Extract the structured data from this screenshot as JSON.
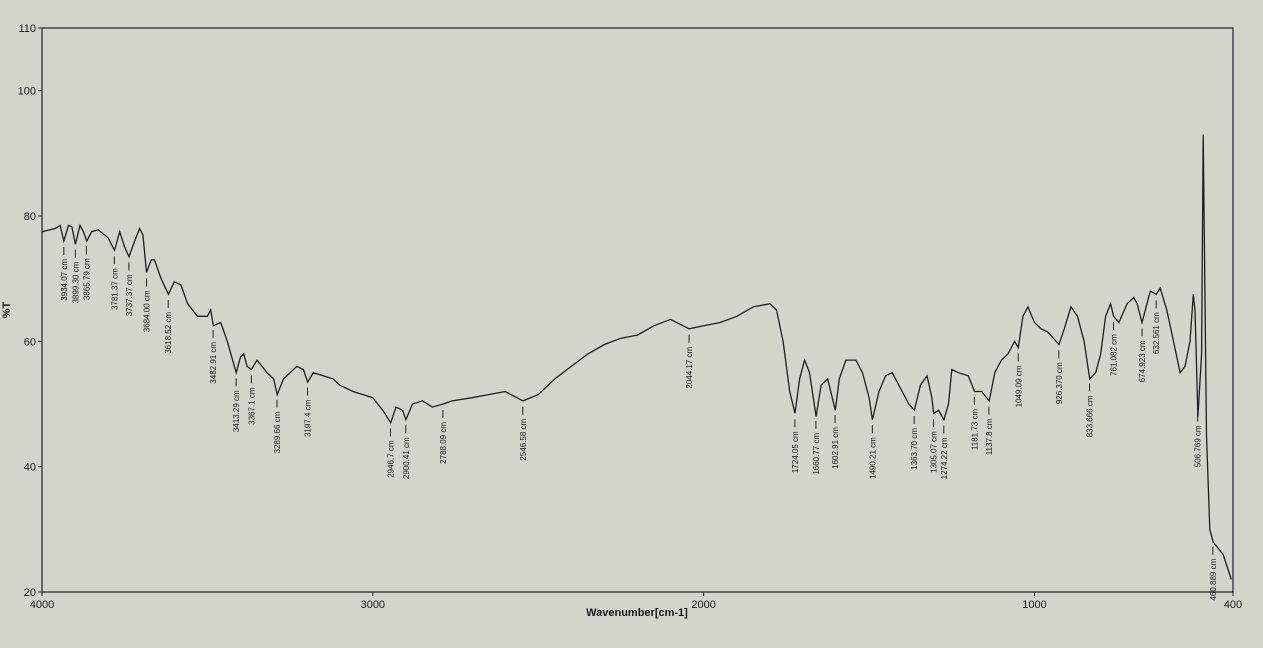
{
  "chart_data": {
    "type": "line",
    "x_label": "Wavenumber[cm-1]",
    "y_label": "%T",
    "color": "#1e1e1e",
    "xlim": [
      4000,
      400
    ],
    "ylim": [
      20,
      110
    ],
    "xticks": [
      4000,
      3000,
      2000,
      1000,
      400
    ],
    "yticks": [
      20,
      40,
      60,
      80,
      100,
      110
    ],
    "x": [
      4000,
      3960,
      3945,
      3934,
      3920,
      3910,
      3899,
      3885,
      3875,
      3865,
      3850,
      3830,
      3800,
      3781,
      3765,
      3750,
      3737,
      3720,
      3705,
      3695,
      3684,
      3670,
      3660,
      3640,
      3618,
      3600,
      3580,
      3560,
      3530,
      3500,
      3490,
      3482,
      3460,
      3440,
      3413,
      3400,
      3390,
      3380,
      3367,
      3350,
      3320,
      3300,
      3289,
      3270,
      3250,
      3230,
      3210,
      3197,
      3180,
      3150,
      3120,
      3100,
      3060,
      3000,
      2970,
      2946,
      2930,
      2910,
      2900,
      2880,
      2850,
      2820,
      2788,
      2760,
      2700,
      2650,
      2600,
      2546,
      2500,
      2450,
      2400,
      2350,
      2300,
      2250,
      2200,
      2150,
      2100,
      2044,
      2000,
      1950,
      1900,
      1850,
      1800,
      1780,
      1760,
      1740,
      1724,
      1710,
      1695,
      1680,
      1660,
      1645,
      1625,
      1602,
      1590,
      1570,
      1540,
      1520,
      1500,
      1490,
      1470,
      1450,
      1430,
      1400,
      1380,
      1363,
      1345,
      1325,
      1310,
      1305,
      1290,
      1274,
      1260,
      1250,
      1230,
      1200,
      1181,
      1160,
      1137,
      1120,
      1100,
      1080,
      1060,
      1049,
      1035,
      1020,
      1000,
      980,
      960,
      926,
      910,
      890,
      870,
      850,
      833,
      815,
      800,
      785,
      770,
      761,
      745,
      720,
      700,
      690,
      675,
      660,
      650,
      632,
      620,
      600,
      580,
      560,
      545,
      530,
      520,
      515,
      506,
      495,
      490,
      480,
      470,
      460,
      430,
      405
    ],
    "values": [
      77.5,
      78,
      78.5,
      76,
      78.5,
      78.3,
      75.5,
      78.5,
      77.5,
      76,
      77.5,
      77.8,
      76.5,
      74.5,
      77.5,
      75,
      73.5,
      76,
      78,
      77,
      71,
      73,
      73,
      70,
      67.5,
      69.5,
      69,
      66,
      64,
      64,
      65,
      62.5,
      63,
      60,
      55,
      57.5,
      58,
      56,
      55.5,
      57,
      55,
      54,
      51.5,
      54,
      55,
      56,
      55.5,
      53.5,
      55,
      54.5,
      54,
      53,
      52,
      51,
      49,
      47,
      49.5,
      49,
      47.5,
      50,
      50.5,
      49.5,
      50,
      50.5,
      51,
      51.5,
      52,
      50.5,
      51.5,
      54,
      56,
      58,
      59.5,
      60.5,
      61,
      62.5,
      63.5,
      62,
      62.5,
      63,
      64,
      65.5,
      66,
      65,
      60,
      52,
      48.5,
      54,
      57,
      55,
      48,
      53,
      54,
      49,
      54,
      57,
      57,
      55,
      51,
      47.5,
      52,
      54.5,
      55,
      52,
      50,
      49,
      53,
      54.5,
      51,
      48.5,
      49,
      47.5,
      50,
      55.5,
      55,
      54.5,
      52,
      52,
      50.5,
      55,
      57,
      58,
      60,
      59,
      64,
      65.5,
      63,
      62,
      61.5,
      59.5,
      62,
      65.5,
      64,
      60,
      54,
      55,
      58,
      64,
      66,
      64,
      63,
      66,
      67,
      66,
      63,
      66,
      68,
      67.5,
      68.5,
      65,
      60,
      55,
      56,
      60,
      67.5,
      65,
      48,
      58,
      93,
      45,
      30,
      28,
      26,
      22
    ],
    "peaks": [
      {
        "x": 3934.07,
        "label": "3934.07 cm"
      },
      {
        "x": 3899.3,
        "label": "3899.30 cm"
      },
      {
        "x": 3865.79,
        "label": "3865.79 cm"
      },
      {
        "x": 3781.37,
        "label": "3781.37 cm"
      },
      {
        "x": 3737.37,
        "label": "3737.37 cm"
      },
      {
        "x": 3684,
        "label": "3684.00 cm"
      },
      {
        "x": 3618.52,
        "label": "3618.52 cm"
      },
      {
        "x": 3482.91,
        "label": "3482.91 cm"
      },
      {
        "x": 3413.29,
        "label": "3413.29 cm"
      },
      {
        "x": 3367.1,
        "label": "3367.1 cm"
      },
      {
        "x": 3289.66,
        "label": "3289.66 cm"
      },
      {
        "x": 3197.4,
        "label": "3197.4 cm"
      },
      {
        "x": 2946.7,
        "label": "2946.7 cm"
      },
      {
        "x": 2900.41,
        "label": "2900.41 cm"
      },
      {
        "x": 2788.09,
        "label": "2788.09 cm"
      },
      {
        "x": 2546.58,
        "label": "2546.58 cm"
      },
      {
        "x": 2044.17,
        "label": "2044.17 cm"
      },
      {
        "x": 1724.05,
        "label": "1724.05 cm"
      },
      {
        "x": 1660.77,
        "label": "1660.77 cm"
      },
      {
        "x": 1602.91,
        "label": "1602.91 cm"
      },
      {
        "x": 1490.21,
        "label": "1490.21 cm"
      },
      {
        "x": 1363.7,
        "label": "1363.70 cm"
      },
      {
        "x": 1305.07,
        "label": "1305.07 cm"
      },
      {
        "x": 1274.22,
        "label": "1274.22 cm"
      },
      {
        "x": 1181.73,
        "label": "1181.73 cm"
      },
      {
        "x": 1137.8,
        "label": "1137.8 cm"
      },
      {
        "x": 1049.09,
        "label": "1049.09 cm"
      },
      {
        "x": 926.37,
        "label": "926.370 cm"
      },
      {
        "x": 833.666,
        "label": "833.666 cm"
      },
      {
        "x": 761.082,
        "label": "761.082 cm"
      },
      {
        "x": 674.923,
        "label": "674.923 cm"
      },
      {
        "x": 632.561,
        "label": "632.561 cm"
      },
      {
        "x": 506.769,
        "label": "506.769 cm"
      },
      {
        "x": 460.889,
        "label": "460.889 cm"
      }
    ]
  }
}
